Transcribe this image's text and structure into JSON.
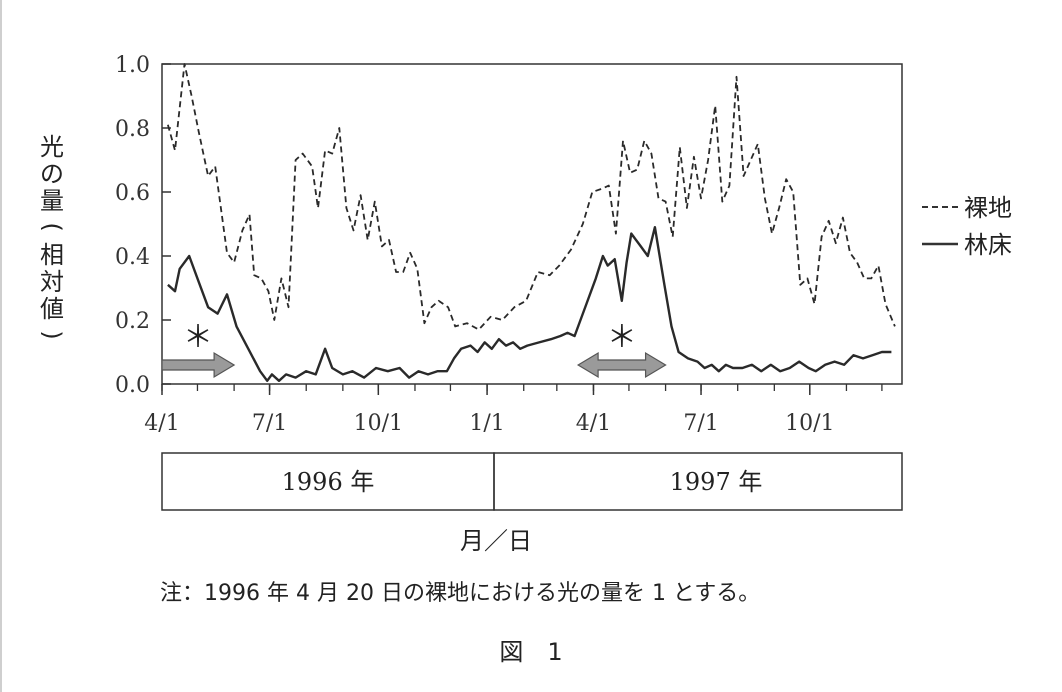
{
  "chart_data": {
    "type": "line",
    "ylabel": "光の量(相対値)",
    "xlabel": "月／日",
    "ylim": [
      0,
      1.0
    ],
    "yticks": [
      "0.0",
      "0.2",
      "0.4",
      "0.6",
      "0.8",
      "1.0"
    ],
    "xlim": [
      "1996-04-01",
      "1997-12-18"
    ],
    "xticks": [
      {
        "label": "4/1",
        "date": "1996-04-01"
      },
      {
        "label": "7/1",
        "date": "1996-07-01"
      },
      {
        "label": "10/1",
        "date": "1996-10-01"
      },
      {
        "label": "1/1",
        "date": "1997-01-01"
      },
      {
        "label": "4/1",
        "date": "1997-04-01"
      },
      {
        "label": "7/1",
        "date": "1997-07-01"
      },
      {
        "label": "10/1",
        "date": "1997-10-01"
      }
    ],
    "years": [
      "1996 年",
      "1997 年"
    ],
    "note": "注：1996 年 4 月 20 日の裸地における光の量を 1 とする。",
    "figure_label": "図　1",
    "annotation_mark": "＊",
    "series": [
      {
        "name": "裸地",
        "style": "dashed",
        "points": [
          [
            "1996-04-06",
            0.81
          ],
          [
            "1996-04-12",
            0.73
          ],
          [
            "1996-04-20",
            1.0
          ],
          [
            "1996-04-26",
            0.9
          ],
          [
            "1996-05-02",
            0.79
          ],
          [
            "1996-05-10",
            0.65
          ],
          [
            "1996-05-16",
            0.68
          ],
          [
            "1996-05-26",
            0.41
          ],
          [
            "1996-06-01",
            0.38
          ],
          [
            "1996-06-08",
            0.48
          ],
          [
            "1996-06-14",
            0.53
          ],
          [
            "1996-06-18",
            0.34
          ],
          [
            "1996-06-24",
            0.33
          ],
          [
            "1996-06-30",
            0.29
          ],
          [
            "1996-07-05",
            0.2
          ],
          [
            "1996-07-11",
            0.33
          ],
          [
            "1996-07-17",
            0.24
          ],
          [
            "1996-07-23",
            0.7
          ],
          [
            "1996-07-29",
            0.72
          ],
          [
            "1996-08-06",
            0.68
          ],
          [
            "1996-08-11",
            0.55
          ],
          [
            "1996-08-17",
            0.73
          ],
          [
            "1996-08-23",
            0.72
          ],
          [
            "1996-08-29",
            0.8
          ],
          [
            "1996-09-04",
            0.55
          ],
          [
            "1996-09-10",
            0.48
          ],
          [
            "1996-09-16",
            0.59
          ],
          [
            "1996-09-22",
            0.45
          ],
          [
            "1996-09-28",
            0.57
          ],
          [
            "1996-10-04",
            0.43
          ],
          [
            "1996-10-10",
            0.45
          ],
          [
            "1996-10-16",
            0.35
          ],
          [
            "1996-10-22",
            0.35
          ],
          [
            "1996-10-28",
            0.41
          ],
          [
            "1996-11-03",
            0.36
          ],
          [
            "1996-11-09",
            0.19
          ],
          [
            "1996-11-15",
            0.24
          ],
          [
            "1996-11-21",
            0.26
          ],
          [
            "1996-11-29",
            0.24
          ],
          [
            "1996-12-05",
            0.18
          ],
          [
            "1996-12-15",
            0.19
          ],
          [
            "1996-12-25",
            0.17
          ],
          [
            "1997-01-04",
            0.21
          ],
          [
            "1997-01-14",
            0.2
          ],
          [
            "1997-01-24",
            0.24
          ],
          [
            "1997-02-03",
            0.26
          ],
          [
            "1997-02-13",
            0.35
          ],
          [
            "1997-02-23",
            0.34
          ],
          [
            "1997-03-03",
            0.37
          ],
          [
            "1997-03-13",
            0.42
          ],
          [
            "1997-03-23",
            0.5
          ],
          [
            "1997-03-31",
            0.6
          ],
          [
            "1997-04-08",
            0.61
          ],
          [
            "1997-04-14",
            0.62
          ],
          [
            "1997-04-20",
            0.47
          ],
          [
            "1997-04-26",
            0.76
          ],
          [
            "1997-05-02",
            0.66
          ],
          [
            "1997-05-08",
            0.67
          ],
          [
            "1997-05-14",
            0.76
          ],
          [
            "1997-05-20",
            0.72
          ],
          [
            "1997-05-26",
            0.58
          ],
          [
            "1997-06-01",
            0.57
          ],
          [
            "1997-06-07",
            0.46
          ],
          [
            "1997-06-13",
            0.74
          ],
          [
            "1997-06-19",
            0.55
          ],
          [
            "1997-06-25",
            0.71
          ],
          [
            "1997-07-01",
            0.58
          ],
          [
            "1997-07-07",
            0.7
          ],
          [
            "1997-07-13",
            0.87
          ],
          [
            "1997-07-19",
            0.57
          ],
          [
            "1997-07-25",
            0.62
          ],
          [
            "1997-07-31",
            0.96
          ],
          [
            "1997-08-06",
            0.65
          ],
          [
            "1997-08-12",
            0.7
          ],
          [
            "1997-08-18",
            0.75
          ],
          [
            "1997-08-24",
            0.58
          ],
          [
            "1997-08-30",
            0.47
          ],
          [
            "1997-09-05",
            0.55
          ],
          [
            "1997-09-11",
            0.64
          ],
          [
            "1997-09-17",
            0.6
          ],
          [
            "1997-09-23",
            0.31
          ],
          [
            "1997-09-29",
            0.33
          ],
          [
            "1997-10-05",
            0.25
          ],
          [
            "1997-10-11",
            0.46
          ],
          [
            "1997-10-17",
            0.51
          ],
          [
            "1997-10-23",
            0.44
          ],
          [
            "1997-10-29",
            0.52
          ],
          [
            "1997-11-04",
            0.41
          ],
          [
            "1997-11-10",
            0.38
          ],
          [
            "1997-11-16",
            0.33
          ],
          [
            "1997-11-22",
            0.33
          ],
          [
            "1997-11-28",
            0.37
          ],
          [
            "1997-12-04",
            0.25
          ],
          [
            "1997-12-12",
            0.18
          ]
        ]
      },
      {
        "name": "林床",
        "style": "solid",
        "points": [
          [
            "1996-04-06",
            0.31
          ],
          [
            "1996-04-12",
            0.29
          ],
          [
            "1996-04-16",
            0.36
          ],
          [
            "1996-04-24",
            0.4
          ],
          [
            "1996-05-02",
            0.32
          ],
          [
            "1996-05-10",
            0.24
          ],
          [
            "1996-05-18",
            0.22
          ],
          [
            "1996-05-26",
            0.28
          ],
          [
            "1996-06-03",
            0.18
          ],
          [
            "1996-06-13",
            0.11
          ],
          [
            "1996-06-23",
            0.04
          ],
          [
            "1996-06-29",
            0.01
          ],
          [
            "1996-07-03",
            0.03
          ],
          [
            "1996-07-09",
            0.01
          ],
          [
            "1996-07-15",
            0.03
          ],
          [
            "1996-07-23",
            0.02
          ],
          [
            "1996-08-01",
            0.04
          ],
          [
            "1996-08-09",
            0.03
          ],
          [
            "1996-08-17",
            0.11
          ],
          [
            "1996-08-23",
            0.05
          ],
          [
            "1996-09-01",
            0.03
          ],
          [
            "1996-09-09",
            0.04
          ],
          [
            "1996-09-19",
            0.02
          ],
          [
            "1996-09-29",
            0.05
          ],
          [
            "1996-10-09",
            0.04
          ],
          [
            "1996-10-19",
            0.05
          ],
          [
            "1996-10-27",
            0.02
          ],
          [
            "1996-11-04",
            0.04
          ],
          [
            "1996-11-12",
            0.03
          ],
          [
            "1996-11-20",
            0.04
          ],
          [
            "1996-11-28",
            0.04
          ],
          [
            "1996-12-04",
            0.08
          ],
          [
            "1996-12-10",
            0.11
          ],
          [
            "1996-12-18",
            0.12
          ],
          [
            "1996-12-24",
            0.1
          ],
          [
            "1996-12-30",
            0.13
          ],
          [
            "1997-01-05",
            0.11
          ],
          [
            "1997-01-11",
            0.14
          ],
          [
            "1997-01-17",
            0.12
          ],
          [
            "1997-01-23",
            0.13
          ],
          [
            "1997-01-29",
            0.11
          ],
          [
            "1997-02-04",
            0.12
          ],
          [
            "1997-02-14",
            0.13
          ],
          [
            "1997-02-24",
            0.14
          ],
          [
            "1997-03-04",
            0.15
          ],
          [
            "1997-03-10",
            0.16
          ],
          [
            "1997-03-16",
            0.15
          ],
          [
            "1997-03-26",
            0.25
          ],
          [
            "1997-04-03",
            0.33
          ],
          [
            "1997-04-09",
            0.4
          ],
          [
            "1997-04-13",
            0.37
          ],
          [
            "1997-04-19",
            0.39
          ],
          [
            "1997-04-25",
            0.26
          ],
          [
            "1997-04-29",
            0.38
          ],
          [
            "1997-05-03",
            0.47
          ],
          [
            "1997-05-11",
            0.43
          ],
          [
            "1997-05-17",
            0.4
          ],
          [
            "1997-05-23",
            0.49
          ],
          [
            "1997-05-31",
            0.31
          ],
          [
            "1997-06-06",
            0.18
          ],
          [
            "1997-06-12",
            0.1
          ],
          [
            "1997-06-20",
            0.08
          ],
          [
            "1997-06-28",
            0.07
          ],
          [
            "1997-07-04",
            0.05
          ],
          [
            "1997-07-10",
            0.06
          ],
          [
            "1997-07-16",
            0.04
          ],
          [
            "1997-07-22",
            0.06
          ],
          [
            "1997-07-28",
            0.05
          ],
          [
            "1997-08-05",
            0.05
          ],
          [
            "1997-08-13",
            0.06
          ],
          [
            "1997-08-21",
            0.04
          ],
          [
            "1997-08-29",
            0.06
          ],
          [
            "1997-09-06",
            0.04
          ],
          [
            "1997-09-14",
            0.05
          ],
          [
            "1997-09-22",
            0.07
          ],
          [
            "1997-09-30",
            0.05
          ],
          [
            "1997-10-06",
            0.04
          ],
          [
            "1997-10-14",
            0.06
          ],
          [
            "1997-10-22",
            0.07
          ],
          [
            "1997-10-30",
            0.06
          ],
          [
            "1997-11-07",
            0.09
          ],
          [
            "1997-11-15",
            0.08
          ],
          [
            "1997-11-23",
            0.09
          ],
          [
            "1997-12-01",
            0.1
          ],
          [
            "1997-12-09",
            0.1
          ]
        ]
      }
    ],
    "periods": [
      {
        "start": "1996-04-01",
        "end": "1996-06-01",
        "direction": "right"
      },
      {
        "start": "1997-03-19",
        "end": "1997-06-01",
        "direction": "both"
      }
    ]
  }
}
